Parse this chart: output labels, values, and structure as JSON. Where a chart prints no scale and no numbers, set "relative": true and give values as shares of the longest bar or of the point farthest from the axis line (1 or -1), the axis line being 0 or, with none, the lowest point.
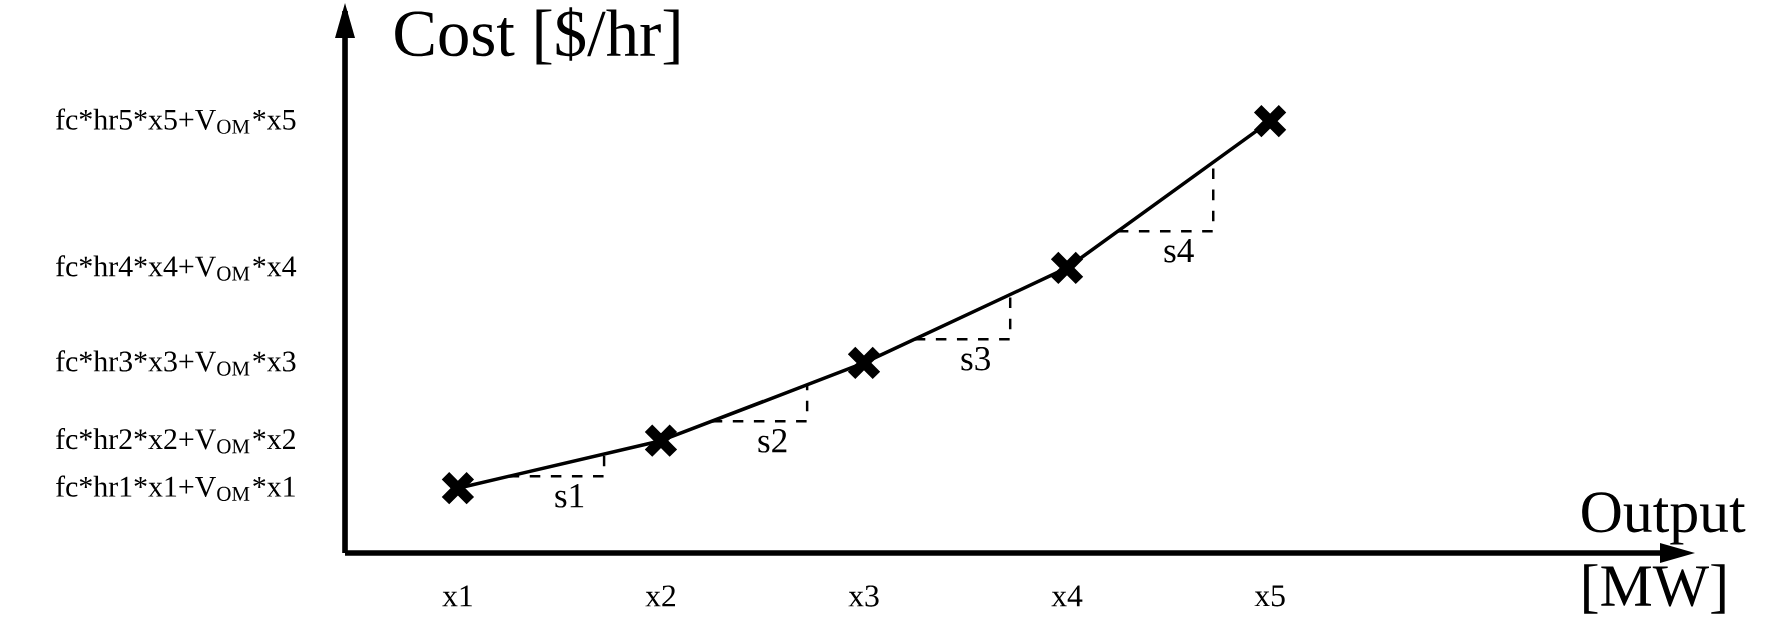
{
  "chart_data": {
    "type": "line",
    "relative": true,
    "ylabel": "Cost [$/hr]",
    "xlabel": "Output [MW]",
    "categories": [
      "x1",
      "x2",
      "x3",
      "x4",
      "x5"
    ],
    "series": [
      {
        "color": "#000000",
        "values": [
          0.15,
          0.26,
          0.44,
          0.66,
          1
        ]
      }
    ],
    "marker": "cross",
    "line_style": "solid",
    "annotations": [
      "fc*hr1*x1+V$_{OM}$*x1",
      "fc*hr2*x2+V$_{OM}$*x2",
      "fc*hr3*x3+V$_{OM}$*x3",
      "fc*hr4*x4+V$_{OM}$*x4",
      "fc*hr5*x5+V$_{OM}$*x5",
      "s1",
      "s2",
      "s3",
      "s4"
    ]
  }
}
